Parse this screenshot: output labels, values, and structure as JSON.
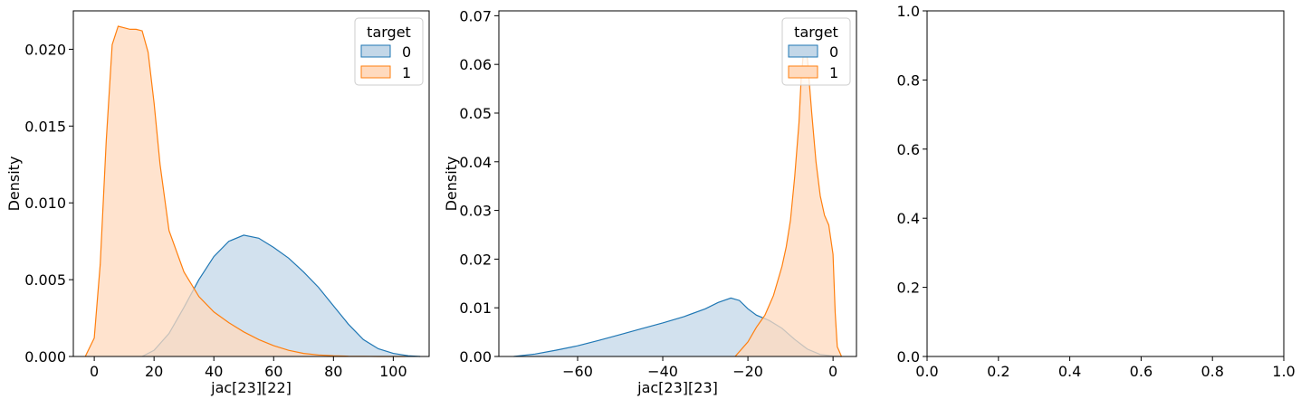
{
  "chart_data": [
    {
      "type": "area",
      "subtype": "kde",
      "xlabel": "jac[23][22]",
      "ylabel": "Density",
      "xlim": [
        -7,
        112
      ],
      "ylim": [
        0,
        0.0225
      ],
      "x_ticks": [
        0,
        20,
        40,
        60,
        80,
        100
      ],
      "x_tick_labels": [
        "0",
        "20",
        "40",
        "60",
        "80",
        "100"
      ],
      "y_ticks": [
        0,
        0.005,
        0.01,
        0.015,
        0.02
      ],
      "y_tick_labels": [
        "0.000",
        "0.005",
        "0.010",
        "0.015",
        "0.020"
      ],
      "legend": {
        "title": "target",
        "position": "top-right"
      },
      "series": [
        {
          "name": "0",
          "color": "#1f77b4",
          "fill": "#c3d7e8",
          "x": [
            16,
            20,
            25,
            30,
            35,
            40,
            45,
            50,
            55,
            60,
            65,
            70,
            75,
            80,
            85,
            90,
            95,
            100,
            105,
            109
          ],
          "y": [
            0.0,
            0.0004,
            0.0015,
            0.0032,
            0.005,
            0.0065,
            0.0075,
            0.0079,
            0.0077,
            0.0071,
            0.0064,
            0.0055,
            0.0045,
            0.0033,
            0.0021,
            0.0011,
            0.0005,
            0.0002,
            5e-05,
            0.0
          ]
        },
        {
          "name": "1",
          "color": "#ff7f0e",
          "fill": "#ffdabe",
          "x": [
            -3,
            0,
            2,
            4,
            6,
            8,
            10,
            12,
            14,
            16,
            18,
            20,
            22,
            25,
            30,
            35,
            40,
            45,
            50,
            55,
            60,
            65,
            70,
            75,
            80,
            85,
            90,
            95,
            100,
            104
          ],
          "y": [
            0.0,
            0.0012,
            0.006,
            0.014,
            0.0203,
            0.0215,
            0.0214,
            0.0213,
            0.0213,
            0.0212,
            0.0198,
            0.0165,
            0.0125,
            0.0082,
            0.0055,
            0.0039,
            0.0029,
            0.0022,
            0.0016,
            0.0011,
            0.0007,
            0.0004,
            0.0002,
            0.0001,
            5e-05,
            2e-05,
            1e-05,
            0.0,
            0.0,
            0.0
          ]
        }
      ]
    },
    {
      "type": "area",
      "subtype": "kde",
      "xlabel": "jac[23][23]",
      "ylabel": "Density",
      "xlim": [
        -78.5,
        5.5
      ],
      "ylim": [
        0,
        0.071
      ],
      "x_ticks": [
        -60,
        -40,
        -20,
        0
      ],
      "x_tick_labels": [
        "−60",
        "−40",
        "−20",
        "0"
      ],
      "y_ticks": [
        0,
        0.01,
        0.02,
        0.03,
        0.04,
        0.05,
        0.06,
        0.07
      ],
      "y_tick_labels": [
        "0.00",
        "0.01",
        "0.02",
        "0.03",
        "0.04",
        "0.05",
        "0.06",
        "0.07"
      ],
      "legend": {
        "title": "target",
        "position": "top-right"
      },
      "series": [
        {
          "name": "0",
          "color": "#1f77b4",
          "fill": "#c3d7e8",
          "x": [
            -75,
            -70,
            -65,
            -60,
            -55,
            -50,
            -45,
            -40,
            -35,
            -30,
            -27,
            -24,
            -22,
            -20,
            -18,
            -15,
            -12,
            -9,
            -6,
            -3,
            0,
            2
          ],
          "y": [
            0.0,
            0.0005,
            0.0013,
            0.0022,
            0.0033,
            0.0045,
            0.0057,
            0.0069,
            0.0082,
            0.0098,
            0.0111,
            0.012,
            0.0115,
            0.0098,
            0.0085,
            0.0074,
            0.0058,
            0.0035,
            0.0015,
            0.0004,
            0.0001,
            0.0
          ]
        },
        {
          "name": "1",
          "color": "#ff7f0e",
          "fill": "#ffdabe",
          "x": [
            -23,
            -20,
            -18,
            -16,
            -14,
            -12,
            -11,
            -10,
            -9,
            -8,
            -7.5,
            -7,
            -6.5,
            -6,
            -5,
            -4,
            -3,
            -2,
            -1,
            0,
            0.5,
            1,
            2
          ],
          "y": [
            0.0,
            0.003,
            0.006,
            0.0085,
            0.0125,
            0.0185,
            0.0225,
            0.028,
            0.037,
            0.048,
            0.057,
            0.062,
            0.064,
            0.061,
            0.05,
            0.04,
            0.033,
            0.029,
            0.027,
            0.021,
            0.009,
            0.002,
            0.0
          ]
        }
      ]
    },
    {
      "type": "line",
      "empty": true,
      "xlim": [
        0,
        1
      ],
      "ylim": [
        0,
        1
      ],
      "x_ticks": [
        0,
        0.2,
        0.4,
        0.6,
        0.8,
        1.0
      ],
      "x_tick_labels": [
        "0.0",
        "0.2",
        "0.4",
        "0.6",
        "0.8",
        "1.0"
      ],
      "y_ticks": [
        0,
        0.2,
        0.4,
        0.6,
        0.8,
        1.0
      ],
      "y_tick_labels": [
        "0.0",
        "0.2",
        "0.4",
        "0.6",
        "0.8",
        "1.0"
      ],
      "series": []
    }
  ]
}
